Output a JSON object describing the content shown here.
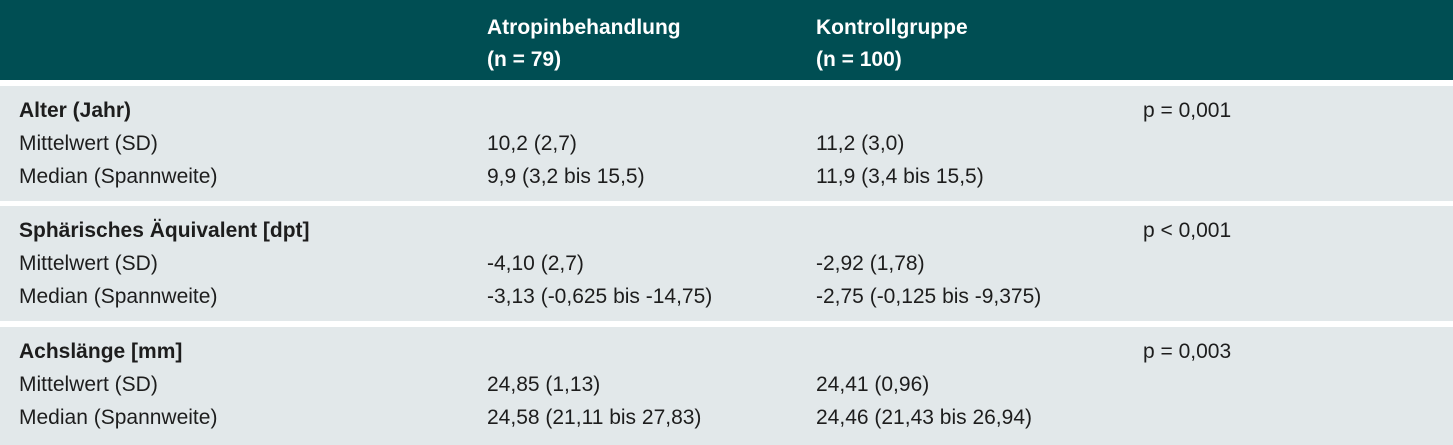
{
  "header": {
    "col_atropin_line1": "Atropinbehandlung",
    "col_atropin_line2": "(n = 79)",
    "col_kontroll_line1": "Kontrollgruppe",
    "col_kontroll_line2": "(n = 100)"
  },
  "sections": [
    {
      "title": "Alter (Jahr)",
      "p_value": "p = 0,001",
      "rows": [
        {
          "label": "Mittelwert (SD)",
          "atropin": "10,2 (2,7)",
          "kontroll": "11,2 (3,0)"
        },
        {
          "label": "Median (Spannweite)",
          "atropin": "9,9 (3,2 bis 15,5)",
          "kontroll": "11,9 (3,4 bis 15,5)"
        }
      ]
    },
    {
      "title": "Sphärisches Äquivalent [dpt]",
      "p_value": "p < 0,001",
      "rows": [
        {
          "label": "Mittelwert (SD)",
          "atropin": "-4,10 (2,7)",
          "kontroll": "-2,92 (1,78)"
        },
        {
          "label": "Median (Spannweite)",
          "atropin": "-3,13 (-0,625 bis -14,75)",
          "kontroll": "-2,75 (-0,125 bis -9,375)"
        }
      ]
    },
    {
      "title": "Achslänge [mm]",
      "p_value": "p = 0,003",
      "rows": [
        {
          "label": "Mittelwert (SD)",
          "atropin": "24,85 (1,13)",
          "kontroll": "24,41 (0,96)"
        },
        {
          "label": "Median (Spannweite)",
          "atropin": "24,58 (21,11 bis 27,83)",
          "kontroll": "24,46 (21,43 bis 26,94)"
        }
      ]
    }
  ],
  "colors": {
    "header_bg": "#004e53",
    "header_text": "#ffffff",
    "section_bg": "#e2e8ea",
    "text": "#1d1d1d"
  }
}
